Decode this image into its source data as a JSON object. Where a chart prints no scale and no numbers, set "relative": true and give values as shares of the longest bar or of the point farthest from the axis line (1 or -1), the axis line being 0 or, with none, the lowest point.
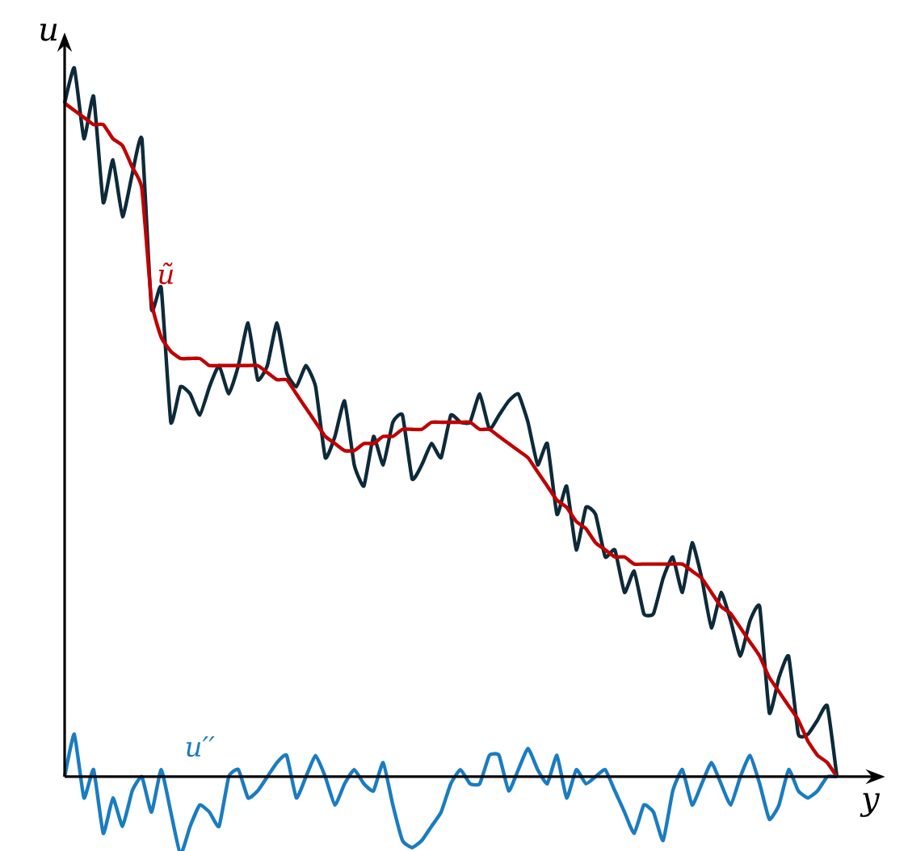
{
  "chart_data": {
    "type": "line",
    "relative": true,
    "xlabel": "y",
    "ylabel": "u",
    "categories": [
      null,
      null,
      null,
      null,
      null,
      null,
      null,
      null,
      null,
      null,
      null,
      null,
      null,
      null,
      null,
      null,
      null,
      null,
      null,
      null,
      null,
      null,
      null,
      null,
      null,
      null,
      null,
      null,
      null,
      null,
      null,
      null,
      null,
      null,
      null,
      null,
      null,
      null,
      null,
      null,
      null,
      null,
      null,
      null,
      null,
      null,
      null,
      null,
      null,
      null,
      null,
      null,
      null,
      null,
      null,
      null,
      null,
      null,
      null,
      null,
      null,
      null,
      null,
      null,
      null,
      null,
      null,
      null,
      null,
      null,
      null,
      null,
      null,
      null,
      null,
      null,
      null,
      null,
      null,
      null,
      null
    ],
    "series": [
      {
        "color": "#0d2a3a",
        "values": [
          0.95,
          1.0,
          0.9,
          0.96,
          0.81,
          0.87,
          0.79,
          0.85,
          0.9,
          0.66,
          0.69,
          0.5,
          0.55,
          0.54,
          0.51,
          0.55,
          0.58,
          0.54,
          0.58,
          0.64,
          0.56,
          0.58,
          0.64,
          0.57,
          0.55,
          0.58,
          0.55,
          0.45,
          0.48,
          0.53,
          0.44,
          0.41,
          0.48,
          0.44,
          0.5,
          0.51,
          0.42,
          0.44,
          0.47,
          0.45,
          0.51,
          0.5,
          0.5,
          0.54,
          0.49,
          0.51,
          0.53,
          0.54,
          0.5,
          0.44,
          0.47,
          0.37,
          0.41,
          0.32,
          0.38,
          0.37,
          0.31,
          0.32,
          0.26,
          0.29,
          0.23,
          0.23,
          0.28,
          0.31,
          0.26,
          0.33,
          0.28,
          0.21,
          0.26,
          0.22,
          0.17,
          0.22,
          0.24,
          0.09,
          0.14,
          0.17,
          0.06,
          0.06,
          0.08,
          0.1,
          0.0
        ]
      },
      {
        "name": "ũ",
        "color": "#c00000",
        "values": [
          0.95,
          0.94,
          0.93,
          0.92,
          0.92,
          0.9,
          0.89,
          0.86,
          0.83,
          0.67,
          0.62,
          0.6,
          0.59,
          0.59,
          0.59,
          0.58,
          0.58,
          0.58,
          0.58,
          0.58,
          0.58,
          0.57,
          0.56,
          0.56,
          0.54,
          0.52,
          0.5,
          0.48,
          0.47,
          0.46,
          0.46,
          0.47,
          0.47,
          0.48,
          0.48,
          0.49,
          0.49,
          0.49,
          0.5,
          0.5,
          0.5,
          0.5,
          0.5,
          0.49,
          0.49,
          0.48,
          0.47,
          0.46,
          0.45,
          0.43,
          0.41,
          0.39,
          0.38,
          0.36,
          0.35,
          0.33,
          0.32,
          0.31,
          0.31,
          0.3,
          0.3,
          0.3,
          0.3,
          0.3,
          0.3,
          0.29,
          0.28,
          0.26,
          0.24,
          0.23,
          0.21,
          0.19,
          0.17,
          0.14,
          0.12,
          0.1,
          0.08,
          0.05,
          0.03,
          0.02,
          0.0
        ]
      },
      {
        "name": "u′′",
        "color": "#1a7cc1",
        "values": [
          0.0,
          0.06,
          -0.03,
          0.01,
          -0.08,
          -0.03,
          -0.07,
          -0.02,
          0.0,
          -0.05,
          0.01,
          -0.05,
          -0.11,
          -0.07,
          -0.04,
          -0.05,
          -0.07,
          0.0,
          0.01,
          -0.03,
          -0.02,
          0.0,
          0.02,
          0.03,
          -0.03,
          0.0,
          0.03,
          0.0,
          -0.04,
          -0.01,
          0.01,
          -0.01,
          -0.02,
          0.02,
          -0.04,
          -0.09,
          -0.1,
          -0.09,
          -0.07,
          -0.05,
          -0.01,
          0.01,
          -0.01,
          -0.01,
          0.03,
          0.03,
          -0.02,
          0.01,
          0.04,
          0.01,
          -0.01,
          0.03,
          -0.03,
          0.01,
          -0.01,
          0.0,
          0.01,
          -0.02,
          -0.05,
          -0.08,
          -0.04,
          -0.05,
          -0.09,
          -0.02,
          0.01,
          -0.04,
          -0.01,
          0.02,
          -0.01,
          -0.04,
          0.0,
          0.03,
          -0.01,
          -0.06,
          -0.04,
          0.01,
          -0.02,
          -0.03,
          -0.02,
          0.0,
          0.0
        ]
      }
    ]
  }
}
